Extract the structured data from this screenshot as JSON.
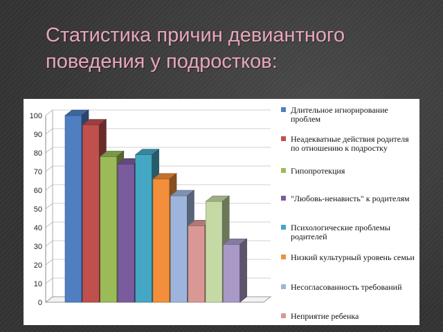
{
  "slide": {
    "title_line1": "Статистика причин девиантного",
    "title_line2": "поведения у подростков:"
  },
  "chart_data": {
    "type": "bar",
    "title": "",
    "xlabel": "",
    "ylabel": "",
    "ylim": [
      0,
      100
    ],
    "yticks": [
      0,
      10,
      20,
      30,
      40,
      50,
      60,
      70,
      80,
      90,
      100
    ],
    "grid": true,
    "legend_position": "right",
    "series": [
      {
        "name": "Длительное игнорирование проблем",
        "value": 100,
        "color": "#4f7fc0"
      },
      {
        "name": "Неадекватные действия родителя по отношению к подростку",
        "value": 95,
        "color": "#c0504d"
      },
      {
        "name": "Гипопротекция",
        "value": 78,
        "color": "#9bbb59"
      },
      {
        "name": "\"Любовь-ненависть\" к родителям",
        "value": 74,
        "color": "#7a5c9e"
      },
      {
        "name": "Психологические проблемы родителей",
        "value": 79,
        "color": "#44a7c4"
      },
      {
        "name": "Низкий культурный уровень семьи",
        "value": 66,
        "color": "#f38f3a"
      },
      {
        "name": "Несогласованность требований",
        "value": 57,
        "color": "#9db5dc"
      },
      {
        "name": "Неприятие ребенка",
        "value": 41,
        "color": "#d99795"
      },
      {
        "name": "",
        "value": 54,
        "color": "#c4d9a4"
      },
      {
        "name": "",
        "value": 31,
        "color": "#a899c6"
      }
    ]
  }
}
